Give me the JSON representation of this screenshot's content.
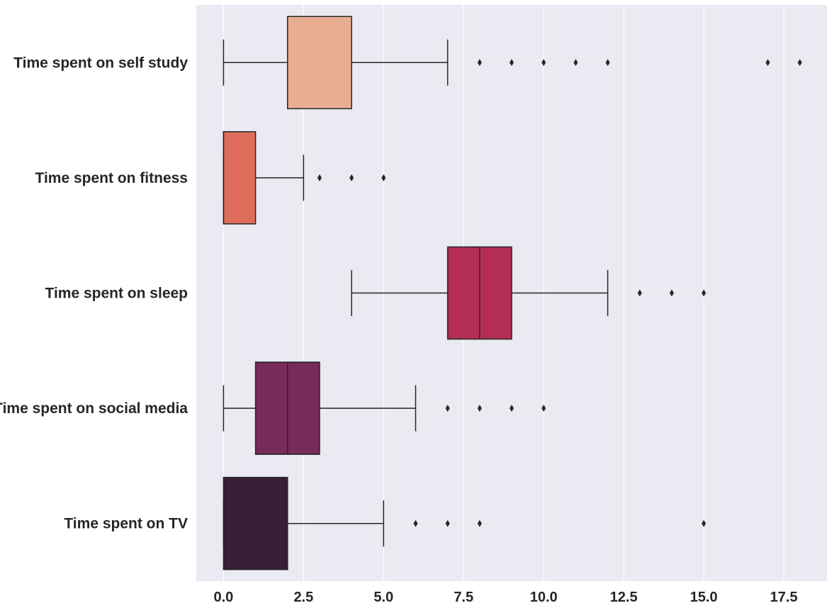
{
  "chart_data": {
    "type": "boxplot",
    "orientation": "horizontal",
    "xlim": [
      -0.85,
      18.85
    ],
    "xticks": [
      0.0,
      2.5,
      5.0,
      7.5,
      10.0,
      12.5,
      15.0,
      17.5
    ],
    "xtick_labels": [
      "0.0",
      "2.5",
      "5.0",
      "7.5",
      "10.0",
      "12.5",
      "15.0",
      "17.5"
    ],
    "grid": true,
    "background": "#eaeaf2",
    "categories": [
      "Time spent on self study",
      "Time spent on fitness",
      "Time spent on sleep",
      "Time spent on social media",
      "Time spent on TV"
    ],
    "series": [
      {
        "whisker_low": 0,
        "q1": 2,
        "median": 2,
        "q3": 4,
        "whisker_high": 7,
        "outliers": [
          8,
          9,
          10,
          11,
          12,
          17,
          18
        ],
        "color": "#e9ae91"
      },
      {
        "whisker_low": 0,
        "q1": 0,
        "median": 0,
        "q3": 1,
        "whisker_high": 2.5,
        "outliers": [
          3,
          4,
          5
        ],
        "color": "#dd6d5a"
      },
      {
        "whisker_low": 4,
        "q1": 7,
        "median": 8,
        "q3": 9,
        "whisker_high": 12,
        "outliers": [
          13,
          14,
          15
        ],
        "color": "#b32d55"
      },
      {
        "whisker_low": 0,
        "q1": 1,
        "median": 2,
        "q3": 3,
        "whisker_high": 6,
        "outliers": [
          7,
          8,
          9,
          10
        ],
        "color": "#762b58"
      },
      {
        "whisker_low": 0,
        "q1": 0,
        "median": 1,
        "q3": 2,
        "whisker_high": 5,
        "outliers": [
          6,
          7,
          8,
          15
        ],
        "color": "#381e38"
      }
    ]
  }
}
